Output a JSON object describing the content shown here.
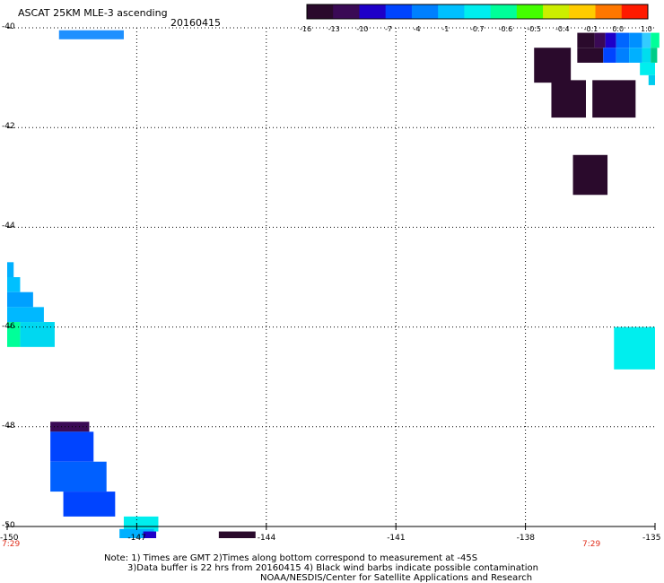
{
  "header": {
    "title": "ASCAT 25KM MLE-3 ascending",
    "date": "20160415"
  },
  "colorbar": {
    "labels": [
      "-16",
      "-13",
      "-10",
      "-7",
      "-4",
      "-1",
      "-0.7",
      "-0.6",
      "-0.5",
      "-0.4",
      "-0.1",
      "0.0",
      "1.0"
    ],
    "colors": [
      "#2a0a2c",
      "#3a0a55",
      "#1e00c8",
      "#0044ff",
      "#0080ff",
      "#00c0ff",
      "#00eeee",
      "#00ff99",
      "#44ff00",
      "#ccee00",
      "#ffcc00",
      "#ff7700",
      "#ff1a00"
    ]
  },
  "axes": {
    "lat_labels": [
      "-40",
      "-42",
      "-44",
      "-46",
      "-48",
      "-50"
    ],
    "lon_labels": [
      "-150",
      "-147",
      "-144",
      "-141",
      "-138",
      "-135"
    ],
    "lat_range": [
      -50,
      -40
    ],
    "lon_range": [
      -150,
      -135
    ],
    "grid": true
  },
  "time_labels": [
    "7:29",
    "7:29"
  ],
  "notes": {
    "line1": "Note: 1) Times are GMT 2)Times along bottom correspond to measurement at -45S",
    "line2": "3)Data buffer is 22 hrs from 20160415 4) Black wind barbs indicate possible contamination",
    "credit": "NOAA/NESDIS/Center for Satellite Applications and Research"
  },
  "chart_data": {
    "type": "heatmap",
    "title": "ASCAT 25KM MLE-3 ascending",
    "subtitle": "20160415",
    "x": "longitude",
    "y": "latitude",
    "xlim": [
      -150,
      -135
    ],
    "ylim": [
      -50,
      -40
    ],
    "cells": [
      {
        "lon": -148.8,
        "lat": -40.05,
        "w": 1.5,
        "h": 0.18,
        "color": "#1e90ff"
      },
      {
        "lon": -136.8,
        "lat": -40.1,
        "w": 0.4,
        "h": 0.3,
        "color": "#2a0a2c"
      },
      {
        "lon": -136.4,
        "lat": -40.1,
        "w": 0.25,
        "h": 0.3,
        "color": "#3a0a55"
      },
      {
        "lon": -136.15,
        "lat": -40.1,
        "w": 0.25,
        "h": 0.3,
        "color": "#1e00c8"
      },
      {
        "lon": -135.9,
        "lat": -40.1,
        "w": 0.3,
        "h": 0.3,
        "color": "#0066ff"
      },
      {
        "lon": -135.6,
        "lat": -40.1,
        "w": 0.3,
        "h": 0.3,
        "color": "#0090ff"
      },
      {
        "lon": -135.3,
        "lat": -40.1,
        "w": 0.2,
        "h": 0.3,
        "color": "#33ccff"
      },
      {
        "lon": -135.1,
        "lat": -40.1,
        "w": 0.2,
        "h": 0.3,
        "color": "#00ff99"
      },
      {
        "lon": -136.8,
        "lat": -40.4,
        "w": 0.6,
        "h": 0.3,
        "color": "#2a0a2c"
      },
      {
        "lon": -136.2,
        "lat": -40.4,
        "w": 0.3,
        "h": 0.3,
        "color": "#0044ff"
      },
      {
        "lon": -135.9,
        "lat": -40.4,
        "w": 0.3,
        "h": 0.3,
        "color": "#0080ff"
      },
      {
        "lon": -135.6,
        "lat": -40.4,
        "w": 0.3,
        "h": 0.3,
        "color": "#00b0ff"
      },
      {
        "lon": -135.3,
        "lat": -40.4,
        "w": 0.2,
        "h": 0.3,
        "color": "#00ddee"
      },
      {
        "lon": -135.1,
        "lat": -40.4,
        "w": 0.15,
        "h": 0.3,
        "color": "#00cc88"
      },
      {
        "lon": -135.35,
        "lat": -40.7,
        "w": 0.35,
        "h": 0.25,
        "color": "#00eeee"
      },
      {
        "lon": -135.15,
        "lat": -40.95,
        "w": 0.15,
        "h": 0.2,
        "color": "#00ccee"
      },
      {
        "lon": -137.8,
        "lat": -40.4,
        "w": 0.85,
        "h": 0.7,
        "color": "#2a0a2c"
      },
      {
        "lon": -137.4,
        "lat": -41.05,
        "w": 0.8,
        "h": 0.75,
        "color": "#2a0a2c"
      },
      {
        "lon": -136.45,
        "lat": -41.05,
        "w": 1.0,
        "h": 0.75,
        "color": "#2a0a2c"
      },
      {
        "lon": -136.9,
        "lat": -42.55,
        "w": 0.8,
        "h": 0.8,
        "color": "#2a0a2c"
      },
      {
        "lon": -150.0,
        "lat": -44.7,
        "w": 0.15,
        "h": 0.3,
        "color": "#00b0ff"
      },
      {
        "lon": -150.0,
        "lat": -45.0,
        "w": 0.3,
        "h": 0.3,
        "color": "#00c0ff"
      },
      {
        "lon": -150.0,
        "lat": -45.3,
        "w": 0.6,
        "h": 0.3,
        "color": "#00a0ff"
      },
      {
        "lon": -150.0,
        "lat": -45.6,
        "w": 0.85,
        "h": 0.3,
        "color": "#00b8ff"
      },
      {
        "lon": -150.0,
        "lat": -45.9,
        "w": 0.3,
        "h": 0.5,
        "color": "#00ff99"
      },
      {
        "lon": -149.7,
        "lat": -45.9,
        "w": 0.8,
        "h": 0.5,
        "color": "#00d8f0"
      },
      {
        "lon": -149.0,
        "lat": -47.9,
        "w": 0.9,
        "h": 0.2,
        "color": "#3a0a55"
      },
      {
        "lon": -149.0,
        "lat": -48.1,
        "w": 1.0,
        "h": 0.6,
        "color": "#0044ff"
      },
      {
        "lon": -149.0,
        "lat": -48.7,
        "w": 1.3,
        "h": 0.6,
        "color": "#0060ff"
      },
      {
        "lon": -148.7,
        "lat": -49.3,
        "w": 1.2,
        "h": 0.5,
        "color": "#0044ff"
      },
      {
        "lon": -147.3,
        "lat": -49.8,
        "w": 0.8,
        "h": 0.3,
        "color": "#00eeee"
      },
      {
        "lon": -147.4,
        "lat": -50.05,
        "w": 0.8,
        "h": 0.25,
        "color": "#00b0ff"
      },
      {
        "lon": -146.85,
        "lat": -50.1,
        "w": 0.3,
        "h": 0.3,
        "color": "#1e00c8"
      },
      {
        "lon": -145.1,
        "lat": -50.1,
        "w": 0.85,
        "h": 0.3,
        "color": "#2a0a2c"
      },
      {
        "lon": -135.95,
        "lat": -46.0,
        "w": 0.95,
        "h": 0.85,
        "color": "#00eeee"
      }
    ]
  }
}
